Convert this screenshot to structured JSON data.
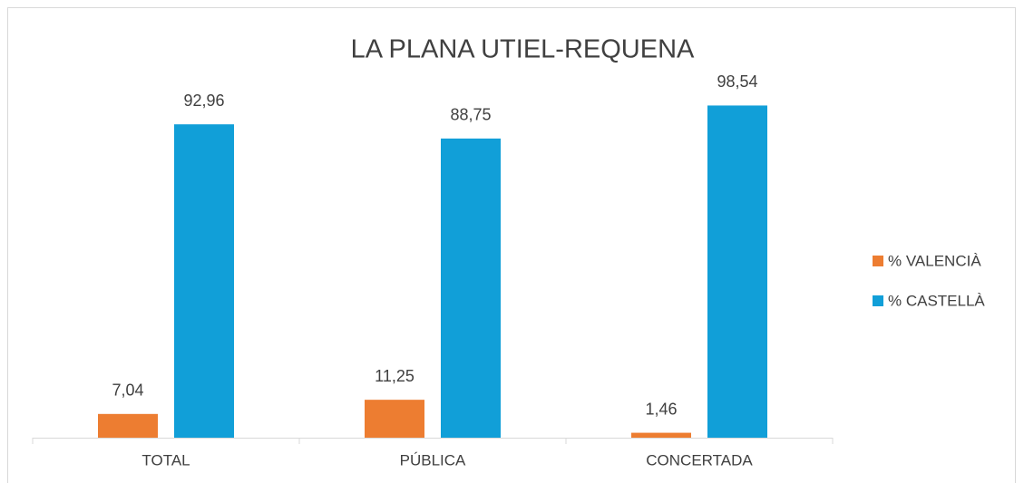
{
  "chart_data": {
    "type": "bar",
    "title": "LA PLANA UTIEL-REQUENA",
    "categories": [
      "TOTAL",
      "PÚBLICA",
      "CONCERTADA"
    ],
    "series": [
      {
        "name": "% VALENCIÀ",
        "color": "#ed7d31",
        "values": [
          7.04,
          11.25,
          1.46
        ],
        "value_labels": [
          "7,04",
          "11,25",
          "1,46"
        ]
      },
      {
        "name": "% CASTELLÀ",
        "color": "#119fd8",
        "values": [
          92.96,
          88.75,
          98.54
        ],
        "value_labels": [
          "92,96",
          "88,75",
          "98,54"
        ]
      }
    ],
    "ylim": [
      0,
      100
    ],
    "legend": "right"
  }
}
